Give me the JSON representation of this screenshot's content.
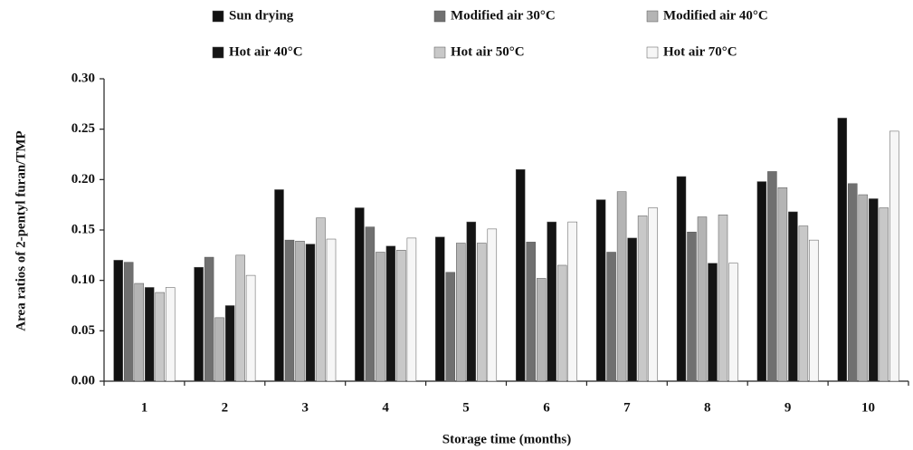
{
  "chart_data": {
    "type": "bar",
    "x_label": "Storage time   (months)",
    "y_label": "Area ratios of  2-pentyl furan/TMP",
    "categories": [
      "1",
      "2",
      "3",
      "4",
      "5",
      "6",
      "7",
      "8",
      "9",
      "10"
    ],
    "series": [
      {
        "name": "Sun drying",
        "color": "#111111",
        "values": [
          0.12,
          0.113,
          0.19,
          0.172,
          0.143,
          0.21,
          0.18,
          0.203,
          0.198,
          0.261
        ]
      },
      {
        "name": "Modified air 30°C",
        "color": "#707070",
        "values": [
          0.118,
          0.123,
          0.14,
          0.153,
          0.108,
          0.138,
          0.128,
          0.148,
          0.208,
          0.196
        ]
      },
      {
        "name": "Modified air 40°C",
        "color": "#b4b4b4",
        "values": [
          0.097,
          0.063,
          0.139,
          0.128,
          0.137,
          0.102,
          0.188,
          0.163,
          0.192,
          0.185
        ]
      },
      {
        "name": "Hot air 40°C",
        "color": "#151515",
        "values": [
          0.093,
          0.075,
          0.136,
          0.134,
          0.158,
          0.158,
          0.142,
          0.117,
          0.168,
          0.181
        ]
      },
      {
        "name": "Hot air 50°C",
        "color": "#c8c8c8",
        "values": [
          0.088,
          0.125,
          0.162,
          0.13,
          0.137,
          0.115,
          0.164,
          0.165,
          0.154,
          0.172
        ]
      },
      {
        "name": "Hot air 70°C",
        "color": "#f6f6f6",
        "values": [
          0.093,
          0.105,
          0.141,
          0.142,
          0.151,
          0.158,
          0.172,
          0.117,
          0.14,
          0.248
        ]
      }
    ],
    "ylim": [
      0,
      0.3
    ],
    "yticks": [
      {
        "value": 0,
        "label": "0.00"
      },
      {
        "value": 0.05,
        "label": "0.05"
      },
      {
        "value": 0.1,
        "label": "0.10"
      },
      {
        "value": 0.15,
        "label": "0.15"
      },
      {
        "value": 0.2,
        "label": "0.20"
      },
      {
        "value": 0.25,
        "label": "0.25"
      },
      {
        "value": 0.3,
        "label": "0.30"
      }
    ],
    "grid": false
  }
}
